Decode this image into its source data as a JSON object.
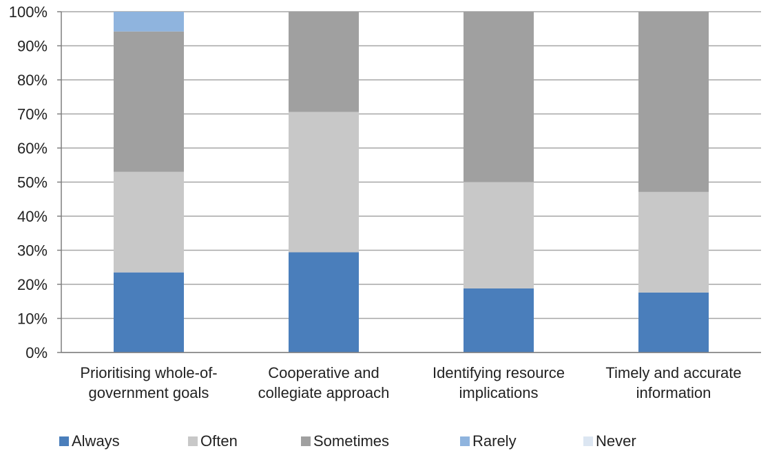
{
  "chart_data": {
    "type": "bar",
    "stacked": true,
    "percent": true,
    "categories": [
      [
        "Prioritising whole-of-",
        "government goals"
      ],
      [
        "Cooperative and",
        "collegiate approach"
      ],
      [
        "Identifying resource",
        "implications"
      ],
      [
        "Timely and accurate",
        "information"
      ]
    ],
    "series": [
      {
        "name": "Always",
        "color": "#4a7ebb",
        "values": [
          23.5,
          29.4,
          18.8,
          17.6
        ]
      },
      {
        "name": "Often",
        "color": "#c8c8c8",
        "values": [
          29.5,
          41.2,
          31.2,
          29.5
        ]
      },
      {
        "name": "Sometimes",
        "color": "#a0a0a0",
        "values": [
          41.2,
          29.4,
          50.0,
          52.9
        ]
      },
      {
        "name": "Rarely",
        "color": "#8fb4de",
        "values": [
          5.8,
          0,
          0,
          0
        ]
      },
      {
        "name": "Never",
        "color": "#dce6f2",
        "values": [
          0,
          0,
          0,
          0
        ]
      }
    ],
    "ylim": [
      0,
      100
    ],
    "yticks": [
      "0%",
      "10%",
      "20%",
      "30%",
      "40%",
      "50%",
      "60%",
      "70%",
      "80%",
      "90%",
      "100%"
    ],
    "grid": true,
    "legend_position": "bottom"
  }
}
